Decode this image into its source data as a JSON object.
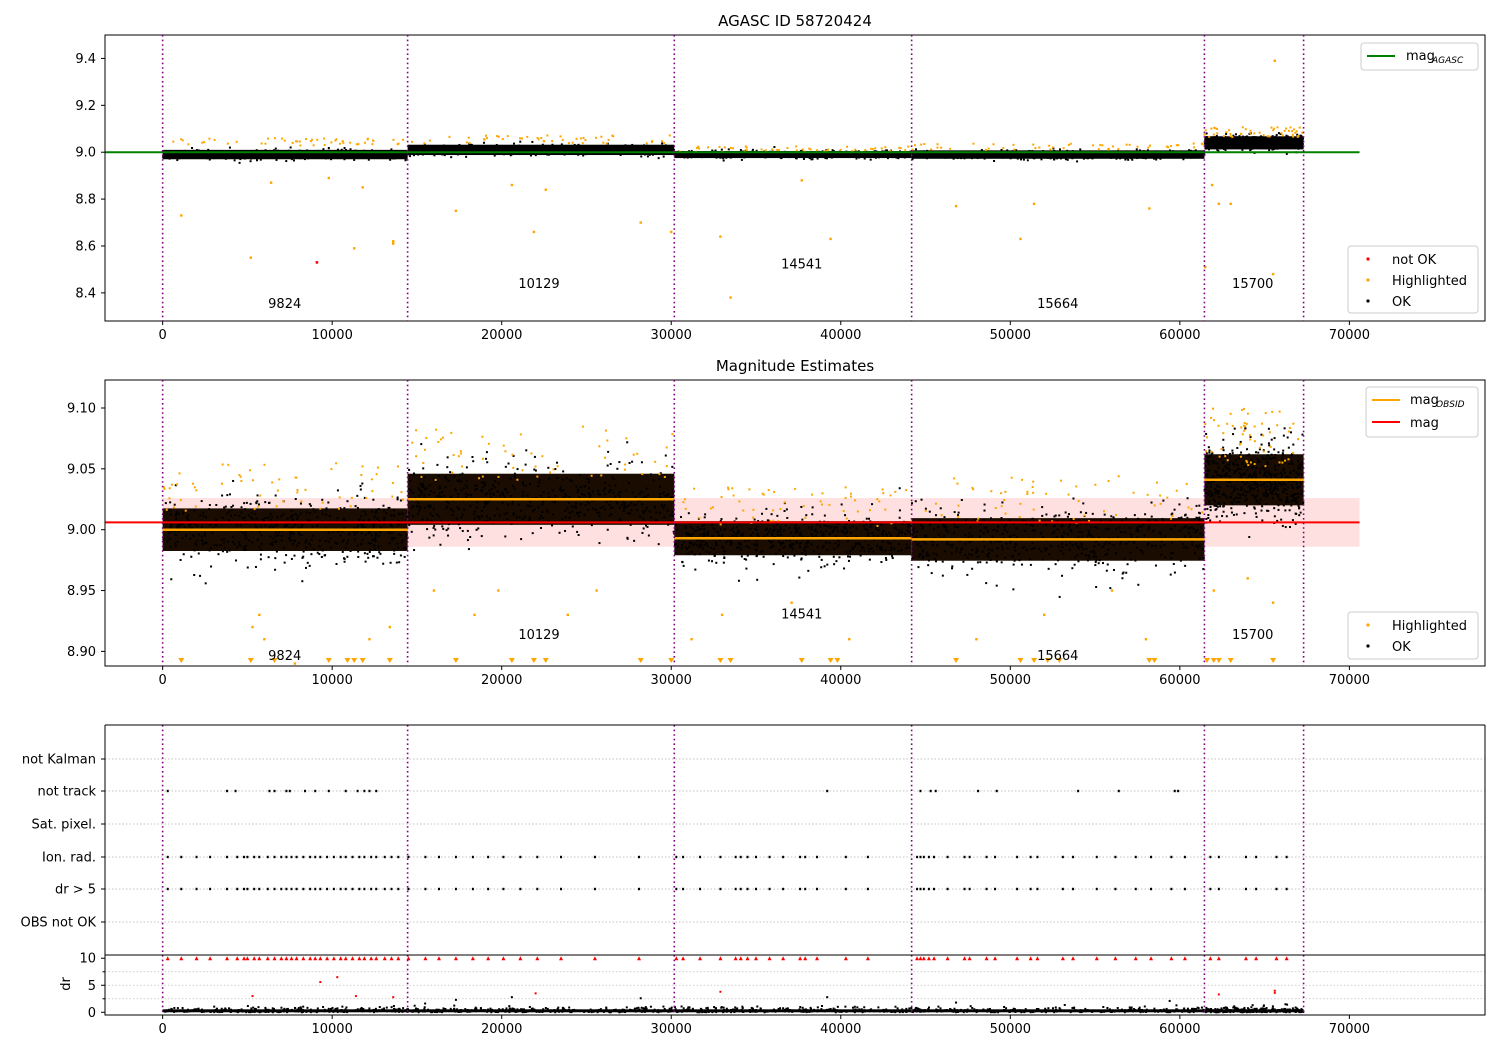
{
  "chart_data": [
    {
      "type": "scatter",
      "title": "AGASC ID 58720424",
      "xlabel": "",
      "ylabel": "",
      "xlim": [
        -3400,
        78000
      ],
      "ylim": [
        8.28,
        9.5
      ],
      "xticks": [
        0,
        10000,
        20000,
        30000,
        40000,
        50000,
        60000,
        70000
      ],
      "xtick_labels": [
        "0",
        "10000",
        "20000",
        "30000",
        "40000",
        "50000",
        "60000",
        "70000"
      ],
      "yticks": [
        8.4,
        8.6,
        8.8,
        9.0,
        9.2,
        9.4
      ],
      "ytick_labels": [
        "8.4",
        "8.6",
        "8.8",
        "9.0",
        "9.2",
        "9.4"
      ],
      "obs_boundaries": [
        0,
        14450,
        30180,
        44180,
        61450,
        67300
      ],
      "obs_labels": [
        {
          "text": "9824",
          "x": 7200,
          "y": 8.335
        },
        {
          "text": "10129",
          "x": 22200,
          "y": 8.42
        },
        {
          "text": "14541",
          "x": 37700,
          "y": 8.505
        },
        {
          "text": "15664",
          "x": 52800,
          "y": 8.335
        },
        {
          "text": "15700",
          "x": 64300,
          "y": 8.42
        }
      ],
      "mag_agasc": {
        "value": 9.0,
        "x_range": [
          0,
          70600
        ],
        "color": "#008000"
      },
      "segments": [
        {
          "x0": 0,
          "x1": 14450,
          "center": 8.99,
          "half_width": 0.02,
          "highlight_above": 9.04
        },
        {
          "x0": 14450,
          "x1": 30180,
          "center": 9.01,
          "half_width": 0.022,
          "highlight_above": 9.05
        },
        {
          "x0": 30180,
          "x1": 44180,
          "center": 8.99,
          "half_width": 0.015,
          "highlight_above": 9.01
        },
        {
          "x0": 44180,
          "x1": 61450,
          "center": 8.99,
          "half_width": 0.018,
          "highlight_above": 9.02
        },
        {
          "x0": 61450,
          "x1": 67300,
          "center": 9.04,
          "half_width": 0.028,
          "highlight_above": 9.08
        }
      ],
      "highlighted_outliers": [
        [
          1100,
          8.73
        ],
        [
          5200,
          8.55
        ],
        [
          6400,
          8.87
        ],
        [
          9800,
          8.89
        ],
        [
          11300,
          8.59
        ],
        [
          11800,
          8.85
        ],
        [
          13600,
          8.61
        ],
        [
          13600,
          8.62
        ],
        [
          17300,
          8.75
        ],
        [
          20600,
          8.86
        ],
        [
          21900,
          8.66
        ],
        [
          22600,
          8.84
        ],
        [
          28200,
          8.7
        ],
        [
          30000,
          8.66
        ],
        [
          32900,
          8.64
        ],
        [
          33500,
          8.38
        ],
        [
          39400,
          8.63
        ],
        [
          37700,
          8.88
        ],
        [
          46800,
          8.77
        ],
        [
          50600,
          8.63
        ],
        [
          51400,
          8.78
        ],
        [
          58200,
          8.76
        ],
        [
          61500,
          8.51
        ],
        [
          61900,
          8.86
        ],
        [
          62300,
          8.78
        ],
        [
          63000,
          8.78
        ],
        [
          65500,
          8.48
        ],
        [
          65600,
          9.39
        ]
      ],
      "not_ok_points": [
        [
          9100,
          8.53
        ]
      ],
      "legend": [
        "mag_AGASC",
        "not OK",
        "Highlighted",
        "OK"
      ],
      "legend_upper": {
        "label": "mag",
        "sub": "AGASC"
      },
      "legend_lower": [
        {
          "label": "not OK",
          "color": "#ff0000"
        },
        {
          "label": "Highlighted",
          "color": "#ffa500"
        },
        {
          "label": "OK",
          "color": "#000000"
        }
      ]
    },
    {
      "type": "scatter",
      "title": "Magnitude Estimates",
      "xlabel": "",
      "ylabel": "",
      "xlim": [
        -3400,
        78000
      ],
      "ylim": [
        8.888,
        9.123
      ],
      "xticks": [
        0,
        10000,
        20000,
        30000,
        40000,
        50000,
        60000,
        70000
      ],
      "xtick_labels": [
        "0",
        "10000",
        "20000",
        "30000",
        "40000",
        "50000",
        "60000",
        "70000"
      ],
      "yticks": [
        8.9,
        8.95,
        9.0,
        9.05,
        9.1
      ],
      "ytick_labels": [
        "8.90",
        "8.95",
        "9.00",
        "9.05",
        "9.10"
      ],
      "obs_boundaries": [
        0,
        14450,
        30180,
        44180,
        61450,
        67300
      ],
      "obs_labels": [
        {
          "text": "9824",
          "x": 7200,
          "y": 8.893
        },
        {
          "text": "10129",
          "x": 22200,
          "y": 8.91
        },
        {
          "text": "14541",
          "x": 37700,
          "y": 8.927
        },
        {
          "text": "15664",
          "x": 52800,
          "y": 8.893
        },
        {
          "text": "15700",
          "x": 64300,
          "y": 8.91
        }
      ],
      "mag_line": {
        "value": 9.006,
        "band": [
          8.986,
          9.026
        ],
        "x_range": [
          0,
          70600
        ],
        "color": "#ff0000"
      },
      "mag_obsid": [
        {
          "x0": 0,
          "x1": 14450,
          "value": 9.0
        },
        {
          "x0": 14450,
          "x1": 30180,
          "value": 9.025
        },
        {
          "x0": 30180,
          "x1": 44180,
          "value": 8.993
        },
        {
          "x0": 44180,
          "x1": 61450,
          "value": 8.992
        },
        {
          "x0": 61450,
          "x1": 67300,
          "value": 9.041
        }
      ],
      "segments": [
        {
          "x0": 0,
          "x1": 14450,
          "center": 9.0,
          "half_width": 0.025,
          "highlight_above": 9.03
        },
        {
          "x0": 14450,
          "x1": 30180,
          "center": 9.025,
          "half_width": 0.03,
          "highlight_above": 9.055
        },
        {
          "x0": 30180,
          "x1": 44180,
          "center": 8.993,
          "half_width": 0.02,
          "highlight_above": 9.015
        },
        {
          "x0": 44180,
          "x1": 61450,
          "center": 8.992,
          "half_width": 0.025,
          "highlight_above": 9.02
        },
        {
          "x0": 61450,
          "x1": 67300,
          "center": 9.041,
          "half_width": 0.03,
          "highlight_above": 9.07
        }
      ],
      "highlighted_outliers": [
        [
          5300,
          8.92
        ],
        [
          5700,
          8.93
        ],
        [
          6000,
          8.91
        ],
        [
          7800,
          8.89
        ],
        [
          12200,
          8.91
        ],
        [
          13400,
          8.92
        ],
        [
          16000,
          8.95
        ],
        [
          18400,
          8.93
        ],
        [
          19800,
          8.95
        ],
        [
          23900,
          8.93
        ],
        [
          25600,
          8.95
        ],
        [
          31200,
          8.91
        ],
        [
          33000,
          8.93
        ],
        [
          37100,
          8.94
        ],
        [
          40500,
          8.91
        ],
        [
          48000,
          8.91
        ],
        [
          52000,
          8.93
        ],
        [
          56000,
          8.95
        ],
        [
          58000,
          8.91
        ],
        [
          62000,
          8.95
        ],
        [
          64000,
          8.96
        ],
        [
          65500,
          8.94
        ]
      ],
      "clipped_markers_x": [
        1100,
        5200,
        6600,
        9800,
        10900,
        11300,
        11800,
        13400,
        17300,
        20600,
        21900,
        22600,
        28200,
        30000,
        32900,
        33500,
        37700,
        39400,
        39800,
        46800,
        50600,
        51400,
        52200,
        52900,
        58200,
        58500,
        61600,
        62000,
        62300,
        63000,
        65500
      ],
      "legend": [
        "mag_OBSID",
        "mag",
        "Highlighted",
        "OK"
      ],
      "legend_upper": [
        {
          "label": "mag",
          "sub": "OBSID",
          "color": "#ffa500"
        },
        {
          "label": "mag",
          "sub": "",
          "color": "#ff0000"
        }
      ],
      "legend_lower": [
        {
          "label": "Highlighted",
          "color": "#ffa500"
        },
        {
          "label": "OK",
          "color": "#000000"
        }
      ]
    },
    {
      "type": "scatter",
      "title": "",
      "xlabel": "",
      "ylabel": "",
      "xlim": [
        -3400,
        78000
      ],
      "categories": [
        "not Kalman",
        "not track",
        "Sat. pixel.",
        "Ion. rad.",
        "dr > 5",
        "OBS not OK"
      ],
      "obs_boundaries": [
        0,
        14450,
        30180,
        44180,
        61450,
        67300
      ],
      "flag_rows": {
        "not Kalman": [],
        "not track": [
          300,
          3800,
          4300,
          6300,
          6600,
          7300,
          7500,
          8400,
          9000,
          9800,
          10800,
          11500,
          11900,
          12200,
          12600,
          39200,
          44700,
          45300,
          45600,
          48100,
          49200,
          54000,
          56400,
          59700,
          59900
        ],
        "Sat. pixel.": [],
        "Ion. rad.": [
          300,
          1100,
          2000,
          2800,
          3800,
          4400,
          4800,
          5000,
          5400,
          5700,
          6200,
          6600,
          7000,
          7300,
          7600,
          7900,
          8300,
          8700,
          9000,
          9300,
          9700,
          10100,
          10500,
          10800,
          11200,
          11600,
          11900,
          12300,
          12600,
          13100,
          13500,
          13900,
          14500,
          15500,
          16300,
          17300,
          18300,
          19200,
          20100,
          21100,
          22100,
          23500,
          25500,
          28100,
          30300,
          30700,
          31700,
          32900,
          33800,
          34100,
          34500,
          35000,
          35800,
          36600,
          37600,
          37900,
          38600,
          40300,
          41600,
          44500,
          44700,
          44900,
          45200,
          45500,
          46300,
          47300,
          47600,
          48600,
          49100,
          50400,
          51200,
          51600,
          53100,
          53700,
          55100,
          56200,
          57400,
          58300,
          59500,
          60300,
          61800,
          62300,
          63900,
          64500,
          65700,
          66300
        ],
        "dr > 5": [
          300,
          1100,
          2000,
          2800,
          3800,
          4400,
          4800,
          5000,
          5400,
          5700,
          6200,
          6600,
          7000,
          7300,
          7600,
          7900,
          8300,
          8700,
          9000,
          9300,
          9700,
          10100,
          10500,
          10800,
          11200,
          11600,
          11900,
          12300,
          12600,
          13100,
          13500,
          13900,
          14500,
          15500,
          16300,
          17300,
          18300,
          19200,
          20100,
          21100,
          22100,
          23500,
          25500,
          28100,
          30300,
          30700,
          31700,
          32900,
          33800,
          34100,
          34500,
          35000,
          35800,
          36600,
          37600,
          37900,
          38600,
          40300,
          41600,
          44500,
          44700,
          44900,
          45200,
          45500,
          46300,
          47300,
          47600,
          48600,
          49100,
          50400,
          51200,
          51600,
          53100,
          53700,
          55100,
          56200,
          57400,
          58300,
          59500,
          60300,
          61800,
          62300,
          63900,
          64500,
          65700,
          66300
        ],
        "OBS not OK": []
      }
    },
    {
      "type": "scatter",
      "title": "",
      "xlabel": "",
      "ylabel": "dr",
      "xlim": [
        -3400,
        78000
      ],
      "ylim": [
        -0.5,
        10.6
      ],
      "xticks": [
        0,
        10000,
        20000,
        30000,
        40000,
        50000,
        60000,
        70000
      ],
      "xtick_labels": [
        "0",
        "10000",
        "20000",
        "30000",
        "40000",
        "50000",
        "60000",
        "70000"
      ],
      "yticks": [
        0,
        5,
        10
      ],
      "ytick_labels": [
        "0",
        "5",
        "10"
      ],
      "obs_boundaries": [
        0,
        14450,
        30180,
        44180,
        61450,
        67300
      ],
      "dr_red_points": [
        [
          9300,
          5.6
        ],
        [
          10300,
          6.5
        ],
        [
          11400,
          3.0
        ],
        [
          5300,
          3.0
        ],
        [
          13600,
          2.8
        ],
        [
          22000,
          3.5
        ],
        [
          32900,
          3.8
        ],
        [
          62300,
          3.3
        ],
        [
          65600,
          3.6
        ],
        [
          65600,
          4.0
        ]
      ],
      "dr_black_points": [
        [
          17300,
          2.3
        ],
        [
          20600,
          2.8
        ],
        [
          28200,
          2.6
        ],
        [
          39200,
          2.8
        ],
        [
          46800,
          1.8
        ],
        [
          59400,
          2.1
        ]
      ]
    }
  ]
}
